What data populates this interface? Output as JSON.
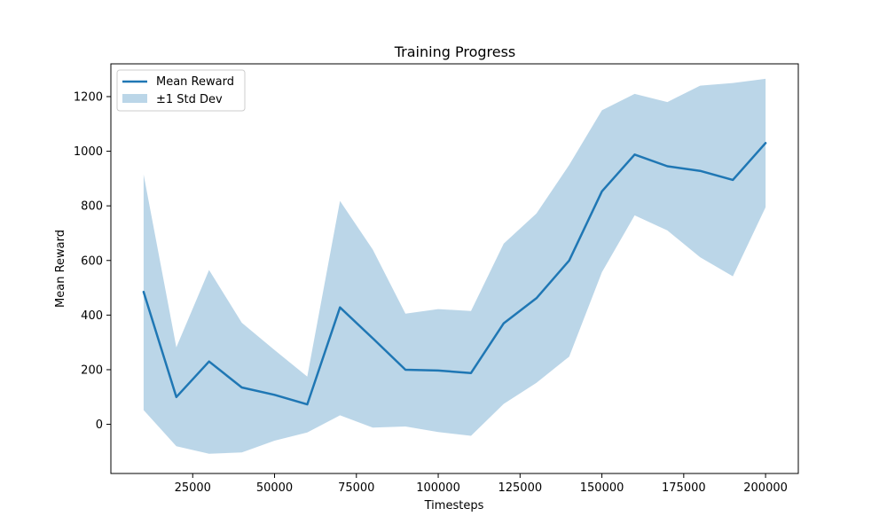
{
  "chart_data": {
    "type": "line",
    "title": "Training Progress",
    "xlabel": "Timesteps",
    "ylabel": "Mean Reward",
    "xlim": [
      0,
      210000
    ],
    "ylim": [
      -180,
      1320
    ],
    "xticks": [
      25000,
      50000,
      75000,
      100000,
      125000,
      150000,
      175000,
      200000
    ],
    "yticks": [
      0,
      200,
      400,
      600,
      800,
      1000,
      1200
    ],
    "grid": false,
    "legend_position": "upper-left",
    "x": [
      10000,
      20000,
      30000,
      40000,
      50000,
      60000,
      70000,
      80000,
      90000,
      100000,
      110000,
      120000,
      130000,
      140000,
      150000,
      160000,
      170000,
      180000,
      190000,
      200000
    ],
    "series": [
      {
        "name": "Mean Reward",
        "color": "#1f77b4",
        "values": [
          485,
          100,
          230,
          135,
          108,
          73,
          428,
          315,
          200,
          197,
          188,
          370,
          462,
          600,
          853,
          988,
          945,
          928,
          895,
          1030
        ]
      }
    ],
    "band": {
      "name": "±1 Std Dev",
      "color": "#1f77b4",
      "opacity": 0.3,
      "upper": [
        915,
        282,
        565,
        372,
        272,
        175,
        818,
        640,
        405,
        422,
        415,
        662,
        772,
        950,
        1150,
        1210,
        1180,
        1240,
        1250,
        1265
      ],
      "lower": [
        52,
        -80,
        -108,
        -103,
        -60,
        -30,
        33,
        -12,
        -8,
        -28,
        -42,
        75,
        152,
        248,
        557,
        765,
        710,
        612,
        542,
        795
      ]
    }
  }
}
